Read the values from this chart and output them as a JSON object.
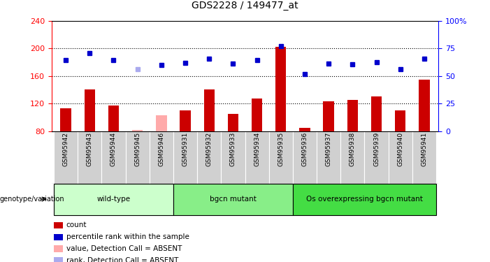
{
  "title": "GDS2228 / 149477_at",
  "samples": [
    "GSM95942",
    "GSM95943",
    "GSM95944",
    "GSM95945",
    "GSM95946",
    "GSM95931",
    "GSM95932",
    "GSM95933",
    "GSM95934",
    "GSM95935",
    "GSM95936",
    "GSM95937",
    "GSM95938",
    "GSM95939",
    "GSM95940",
    "GSM95941"
  ],
  "bar_values": [
    113,
    140,
    117,
    82,
    103,
    110,
    140,
    105,
    127,
    202,
    85,
    123,
    125,
    130,
    110,
    155
  ],
  "bar_absent": [
    false,
    false,
    false,
    true,
    true,
    false,
    false,
    false,
    false,
    false,
    false,
    false,
    false,
    false,
    false,
    false
  ],
  "dot_values": [
    183,
    193,
    183,
    170,
    176,
    179,
    185,
    178,
    183,
    203,
    163,
    178,
    177,
    180,
    170,
    185
  ],
  "dot_absent": [
    false,
    false,
    false,
    true,
    false,
    false,
    false,
    false,
    false,
    false,
    false,
    false,
    false,
    false,
    false,
    false
  ],
  "ylim": [
    80,
    240
  ],
  "y2lim": [
    0,
    100
  ],
  "yticks": [
    80,
    120,
    160,
    200,
    240
  ],
  "y2ticks": [
    0,
    25,
    50,
    75,
    100
  ],
  "groups": [
    {
      "label": "wild-type",
      "start": 0,
      "end": 5,
      "color": "#ccffcc"
    },
    {
      "label": "bgcn mutant",
      "start": 5,
      "end": 10,
      "color": "#88ee88"
    },
    {
      "label": "Os overexpressing bgcn mutant",
      "start": 10,
      "end": 16,
      "color": "#44dd44"
    }
  ],
  "bar_color": "#cc0000",
  "bar_absent_color": "#ffaaaa",
  "dot_color": "#0000cc",
  "dot_absent_color": "#aaaaee",
  "grid_color": "#000000",
  "legend_items": [
    {
      "label": "count",
      "color": "#cc0000",
      "type": "square"
    },
    {
      "label": "percentile rank within the sample",
      "color": "#0000cc",
      "type": "square"
    },
    {
      "label": "value, Detection Call = ABSENT",
      "color": "#ffaaaa",
      "type": "square"
    },
    {
      "label": "rank, Detection Call = ABSENT",
      "color": "#aaaaee",
      "type": "square"
    }
  ]
}
